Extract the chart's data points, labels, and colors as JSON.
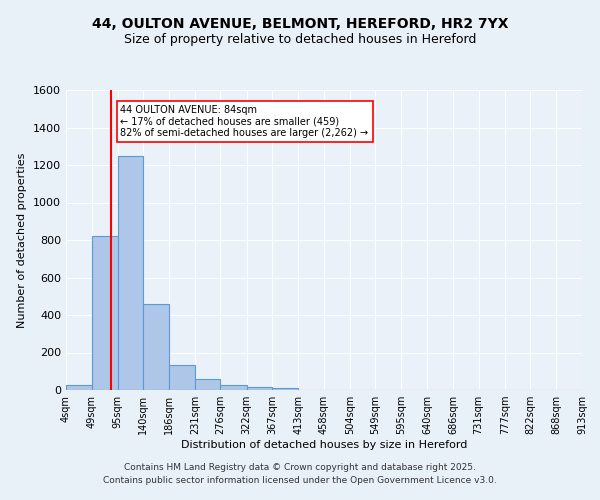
{
  "title_line1": "44, OULTON AVENUE, BELMONT, HEREFORD, HR2 7YX",
  "title_line2": "Size of property relative to detached houses in Hereford",
  "xlabel": "Distribution of detached houses by size in Hereford",
  "ylabel": "Number of detached properties",
  "footer_line1": "Contains HM Land Registry data © Crown copyright and database right 2025.",
  "footer_line2": "Contains public sector information licensed under the Open Government Licence v3.0.",
  "annotation_line1": "44 OULTON AVENUE: 84sqm",
  "annotation_line2": "← 17% of detached houses are smaller (459)",
  "annotation_line3": "82% of semi-detached houses are larger (2,262) →",
  "bin_labels": [
    "4sqm",
    "49sqm",
    "95sqm",
    "140sqm",
    "186sqm",
    "231sqm",
    "276sqm",
    "322sqm",
    "367sqm",
    "413sqm",
    "458sqm",
    "504sqm",
    "549sqm",
    "595sqm",
    "640sqm",
    "686sqm",
    "731sqm",
    "777sqm",
    "822sqm",
    "868sqm",
    "913sqm"
  ],
  "bar_values": [
    25,
    820,
    1250,
    460,
    135,
    58,
    25,
    15,
    10,
    0,
    0,
    0,
    0,
    0,
    0,
    0,
    0,
    0,
    0,
    0
  ],
  "bar_color": "#aec6e8",
  "bar_edge_color": "#5b9bd5",
  "redline_x": 84,
  "bin_edges": [
    4,
    49,
    95,
    140,
    186,
    231,
    276,
    322,
    367,
    413,
    458,
    504,
    549,
    595,
    640,
    686,
    731,
    777,
    822,
    868,
    913
  ],
  "ylim": [
    0,
    1600
  ],
  "yticks": [
    0,
    200,
    400,
    600,
    800,
    1000,
    1200,
    1400,
    1600
  ],
  "bg_color": "#e8f0f8",
  "plot_bg_color": "#eaf1f8",
  "grid_color": "#ffffff",
  "title_fontsize": 10,
  "subtitle_fontsize": 9,
  "footer_fontsize": 6.5
}
